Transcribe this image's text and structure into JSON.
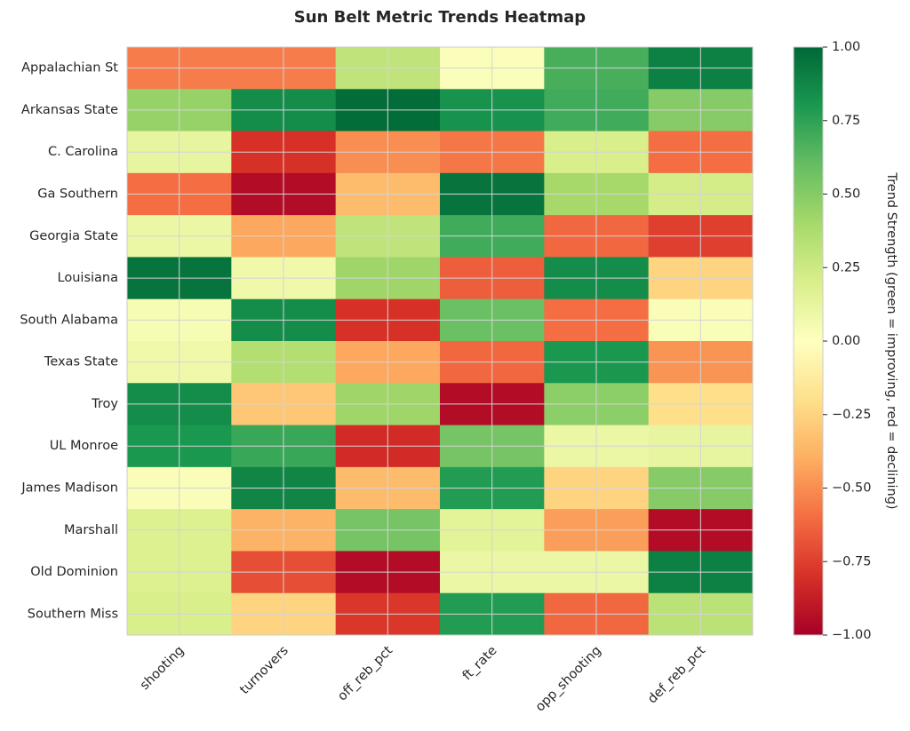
{
  "chart_data": {
    "type": "heatmap",
    "title": "Sun Belt Metric Trends Heatmap",
    "columns": [
      "shooting",
      "turnovers",
      "off_reb_pct",
      "ft_rate",
      "opp_shooting",
      "def_reb_pct"
    ],
    "rows": [
      "Appalachian St",
      "Arkansas State",
      "C. Carolina",
      "Ga Southern",
      "Georgia State",
      "Louisiana",
      "South Alabama",
      "Texas State",
      "Troy",
      "UL Monroe",
      "James Madison",
      "Marshall",
      "Old Dominion",
      "Southern Miss"
    ],
    "values": [
      [
        -0.55,
        -0.55,
        0.3,
        0.02,
        0.68,
        0.9
      ],
      [
        0.45,
        0.85,
        0.98,
        0.82,
        0.7,
        0.5
      ],
      [
        0.12,
        -0.8,
        -0.5,
        -0.57,
        0.2,
        -0.6
      ],
      [
        -0.6,
        -0.95,
        -0.35,
        0.95,
        0.4,
        0.22
      ],
      [
        0.1,
        -0.42,
        0.3,
        0.7,
        -0.62,
        -0.75
      ],
      [
        0.95,
        0.08,
        0.42,
        -0.65,
        0.85,
        -0.25
      ],
      [
        0.04,
        0.85,
        -0.8,
        0.58,
        -0.6,
        0.03
      ],
      [
        0.08,
        0.35,
        -0.42,
        -0.62,
        0.8,
        -0.48
      ],
      [
        0.85,
        -0.3,
        0.42,
        -0.95,
        0.48,
        -0.2
      ],
      [
        0.8,
        0.72,
        -0.82,
        0.55,
        0.1,
        0.12
      ],
      [
        0.03,
        0.88,
        -0.35,
        0.78,
        -0.25,
        0.5
      ],
      [
        0.18,
        -0.38,
        0.55,
        0.15,
        -0.45,
        -0.95
      ],
      [
        0.18,
        -0.7,
        -0.95,
        0.1,
        0.1,
        0.9
      ],
      [
        0.2,
        -0.25,
        -0.78,
        0.78,
        -0.62,
        0.32
      ]
    ],
    "colorbar": {
      "label": "Trend Strength (green = improving, red = declining)",
      "min": -1.0,
      "max": 1.0,
      "ticks": [
        "1.00",
        "0.75",
        "0.50",
        "0.25",
        "0.00",
        "−0.25",
        "−0.50",
        "−0.75",
        "−1.00"
      ],
      "colormap": "RdYlGn"
    },
    "grid": true
  }
}
